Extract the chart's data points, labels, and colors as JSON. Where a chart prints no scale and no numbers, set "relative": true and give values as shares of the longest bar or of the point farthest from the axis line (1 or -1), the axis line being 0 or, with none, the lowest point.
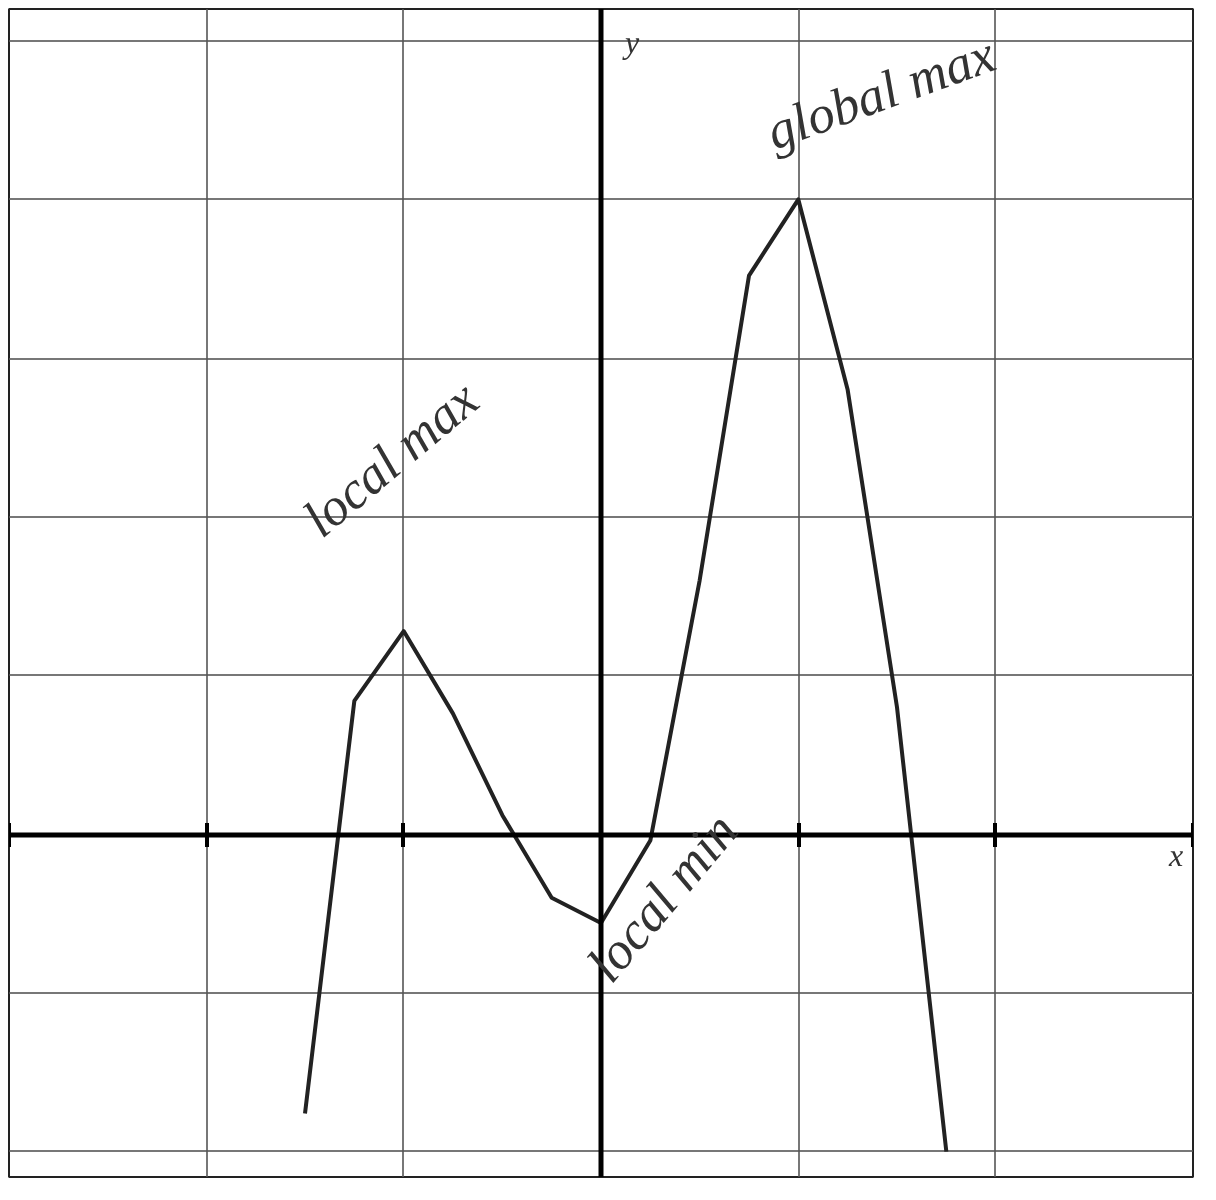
{
  "chart_data": {
    "type": "line",
    "relative": true,
    "ylabel": "y",
    "categories": [
      null,
      null,
      null,
      null,
      null,
      null,
      null,
      null,
      null,
      null,
      null,
      null,
      null,
      null
    ],
    "series": [
      {
        "color": "#222222",
        "values": [
          -0.44,
          0.21,
          0.32,
          0.19,
          0.03,
          -0.1,
          -0.14,
          -0.01,
          0.4,
          0.88,
          1.0,
          0.7,
          0.2,
          -0.5
        ]
      }
    ],
    "annotations": [
      "local max",
      "global max",
      "local min",
      "x"
    ],
    "grid": true,
    "tick_labels": false,
    "marker": "none",
    "line_style": "solid"
  }
}
